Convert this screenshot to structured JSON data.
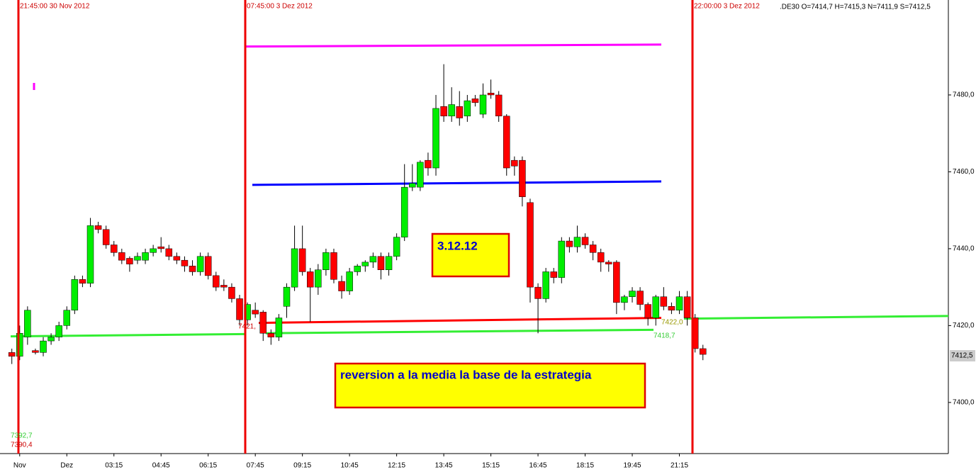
{
  "chart_data": {
    "type": "candlestick",
    "title": ".DE30 O=7414,7 H=7415,3 N=7411,9 S=7412,5",
    "ylim": [
      7386.7,
      7504.7
    ],
    "yticks": [
      {
        "value": 7400,
        "label": "7400,0"
      },
      {
        "value": 7420,
        "label": "7420,0"
      },
      {
        "value": 7440,
        "label": "7440,0"
      },
      {
        "value": 7460,
        "label": "7460,0"
      },
      {
        "value": 7480,
        "label": "7480,0"
      }
    ],
    "up_color": "#00ee00",
    "down_color": "#ff0000",
    "categories": [
      null,
      "Nov",
      null,
      null,
      null,
      null,
      null,
      "Dez",
      null,
      null,
      null,
      null,
      null,
      "03:15",
      null,
      null,
      null,
      null,
      null,
      "04:45",
      null,
      null,
      null,
      null,
      null,
      "06:15",
      null,
      null,
      null,
      null,
      null,
      "07:45",
      null,
      null,
      null,
      null,
      null,
      "09:15",
      null,
      null,
      null,
      null,
      null,
      "10:45",
      null,
      null,
      null,
      null,
      null,
      "12:15",
      null,
      null,
      null,
      null,
      null,
      "13:45",
      null,
      null,
      null,
      null,
      null,
      "15:15",
      null,
      null,
      null,
      null,
      null,
      "16:45",
      null,
      null,
      null,
      null,
      null,
      "18:15",
      null,
      null,
      null,
      null,
      null,
      "19:45",
      null,
      null,
      null,
      null,
      null,
      "21:15",
      null,
      null,
      null
    ],
    "ohlc": [
      [
        7413,
        7414,
        7410,
        7412
      ],
      [
        7412,
        7420,
        7411,
        7418
      ],
      [
        7417,
        7425,
        7415,
        7424
      ],
      [
        7413.5,
        7414,
        7412.5,
        7413
      ],
      [
        7413,
        7417,
        7412,
        7416
      ],
      [
        7416,
        7418,
        7415,
        7417
      ],
      [
        7417,
        7421,
        7416,
        7420
      ],
      [
        7420,
        7425,
        7419,
        7424
      ],
      [
        7424,
        7433,
        7423,
        7432
      ],
      [
        7432,
        7433,
        7430,
        7431
      ],
      [
        7431,
        7448,
        7430,
        7446
      ],
      [
        7446,
        7447,
        7444,
        7445
      ],
      [
        7445,
        7446,
        7440,
        7441
      ],
      [
        7441,
        7442,
        7438,
        7439
      ],
      [
        7439,
        7440,
        7436,
        7437
      ],
      [
        7437.5,
        7438,
        7434,
        7436
      ],
      [
        7437,
        7439,
        7436,
        7438
      ],
      [
        7437,
        7440,
        7436,
        7439
      ],
      [
        7439,
        7441,
        7438,
        7440
      ],
      [
        7440.5,
        7443,
        7439,
        7440
      ],
      [
        7440,
        7441,
        7437,
        7438
      ],
      [
        7438,
        7439,
        7436,
        7437
      ],
      [
        7437,
        7438,
        7434,
        7435.5
      ],
      [
        7435.5,
        7437,
        7433,
        7434
      ],
      [
        7434,
        7439,
        7433,
        7438
      ],
      [
        7438,
        7439,
        7432,
        7433
      ],
      [
        7433,
        7434,
        7429,
        7430
      ],
      [
        7430.5,
        7432,
        7429,
        7430
      ],
      [
        7430,
        7431,
        7426,
        7427
      ],
      [
        7427,
        7428,
        7420,
        7421.5
      ],
      [
        7421.5,
        7426,
        7420,
        7425.5
      ],
      [
        7424,
        7426,
        7422,
        7423
      ],
      [
        7423.5,
        7424,
        7416,
        7418
      ],
      [
        7418,
        7419,
        7415,
        7417
      ],
      [
        7417,
        7423,
        7416,
        7422
      ],
      [
        7425,
        7431,
        7422,
        7430
      ],
      [
        7430,
        7446,
        7429,
        7440
      ],
      [
        7440,
        7446,
        7433,
        7434
      ],
      [
        7434,
        7435,
        7421,
        7430
      ],
      [
        7430,
        7436,
        7428,
        7434.5
      ],
      [
        7434.5,
        7440,
        7433,
        7439
      ],
      [
        7439,
        7440,
        7431,
        7432
      ],
      [
        7431.5,
        7433,
        7427,
        7429
      ],
      [
        7429,
        7435,
        7428,
        7434
      ],
      [
        7434,
        7436,
        7433,
        7435.5
      ],
      [
        7435.5,
        7437,
        7434,
        7436.5
      ],
      [
        7436.5,
        7439,
        7435,
        7438
      ],
      [
        7438,
        7439,
        7432,
        7434.5
      ],
      [
        7434.5,
        7439,
        7433,
        7438
      ],
      [
        7438,
        7444,
        7437,
        7443
      ],
      [
        7443,
        7462,
        7442,
        7456
      ],
      [
        7456,
        7462,
        7455,
        7457
      ],
      [
        7456,
        7463,
        7455,
        7462.5
      ],
      [
        7463,
        7465,
        7459,
        7461
      ],
      [
        7461,
        7480,
        7459,
        7476.5
      ],
      [
        7477,
        7488,
        7473,
        7474.5
      ],
      [
        7474.5,
        7482,
        7473,
        7477.5
      ],
      [
        7477,
        7481,
        7472,
        7474
      ],
      [
        7474.5,
        7480,
        7473,
        7478.5
      ],
      [
        7479,
        7480,
        7477,
        7478
      ],
      [
        7475,
        7483,
        7474,
        7480
      ],
      [
        7480.5,
        7484,
        7479,
        7480
      ],
      [
        7480,
        7481,
        7473,
        7474.5
      ],
      [
        7474.5,
        7475,
        7459,
        7461
      ],
      [
        7463,
        7464,
        7459,
        7461.5
      ],
      [
        7463,
        7464,
        7451,
        7453.5
      ],
      [
        7452,
        7453,
        7426,
        7430
      ],
      [
        7430,
        7431,
        7418,
        7427
      ],
      [
        7427,
        7435,
        7426,
        7434
      ],
      [
        7434,
        7435,
        7431,
        7432.5
      ],
      [
        7432.5,
        7443,
        7431,
        7442
      ],
      [
        7442,
        7443,
        7439,
        7440.5
      ],
      [
        7440.5,
        7446,
        7439,
        7443
      ],
      [
        7443,
        7444,
        7440,
        7441
      ],
      [
        7441,
        7442,
        7437,
        7439
      ],
      [
        7439,
        7440,
        7434,
        7436.5
      ],
      [
        7436.5,
        7437,
        7434,
        7436
      ],
      [
        7436.5,
        7437,
        7423,
        7426
      ],
      [
        7426,
        7428,
        7424,
        7427.5
      ],
      [
        7427.5,
        7430,
        7426,
        7429
      ],
      [
        7429,
        7430,
        7424,
        7425.5
      ],
      [
        7425.5,
        7426,
        7420,
        7422
      ],
      [
        7422,
        7428,
        7420,
        7427.5
      ],
      [
        7427.5,
        7430,
        7424,
        7425
      ],
      [
        7425,
        7426,
        7423,
        7424
      ],
      [
        7424,
        7429,
        7423,
        7427.5
      ],
      [
        7427.5,
        7429,
        7420,
        7422
      ],
      [
        7422,
        7423,
        7413,
        7414
      ],
      [
        7414,
        7415,
        7411,
        7412.5
      ]
    ],
    "lines": [
      {
        "color": "#ff00ff",
        "values": [
          7492.6,
          7493.1
        ]
      },
      {
        "color": "#0000ff",
        "values": [
          7456.6,
          7457.5
        ]
      },
      {
        "color": "#ff0000",
        "values": [
          7420.7,
          7422
        ]
      },
      {
        "color": "#33ee33",
        "values": [
          7417.2,
          7417.8
        ]
      },
      {
        "color": "#33ee33",
        "values": [
          7418,
          7418.9
        ]
      },
      {
        "color": "#33ee33",
        "values": [
          7421.8,
          7422.5
        ]
      }
    ],
    "vlines": [
      "21:45:00 30 Nov 2012",
      "07:45:00 3 Dez 2012",
      "22:00:00 3 Dez 2012"
    ],
    "price_labels": [
      "7421,",
      "7418,7",
      "7422,0",
      "7392,7",
      "7390,4",
      "7412,5"
    ],
    "annotations": [
      "3.12.12",
      "reversion a  la media la base de la estrategia"
    ]
  }
}
